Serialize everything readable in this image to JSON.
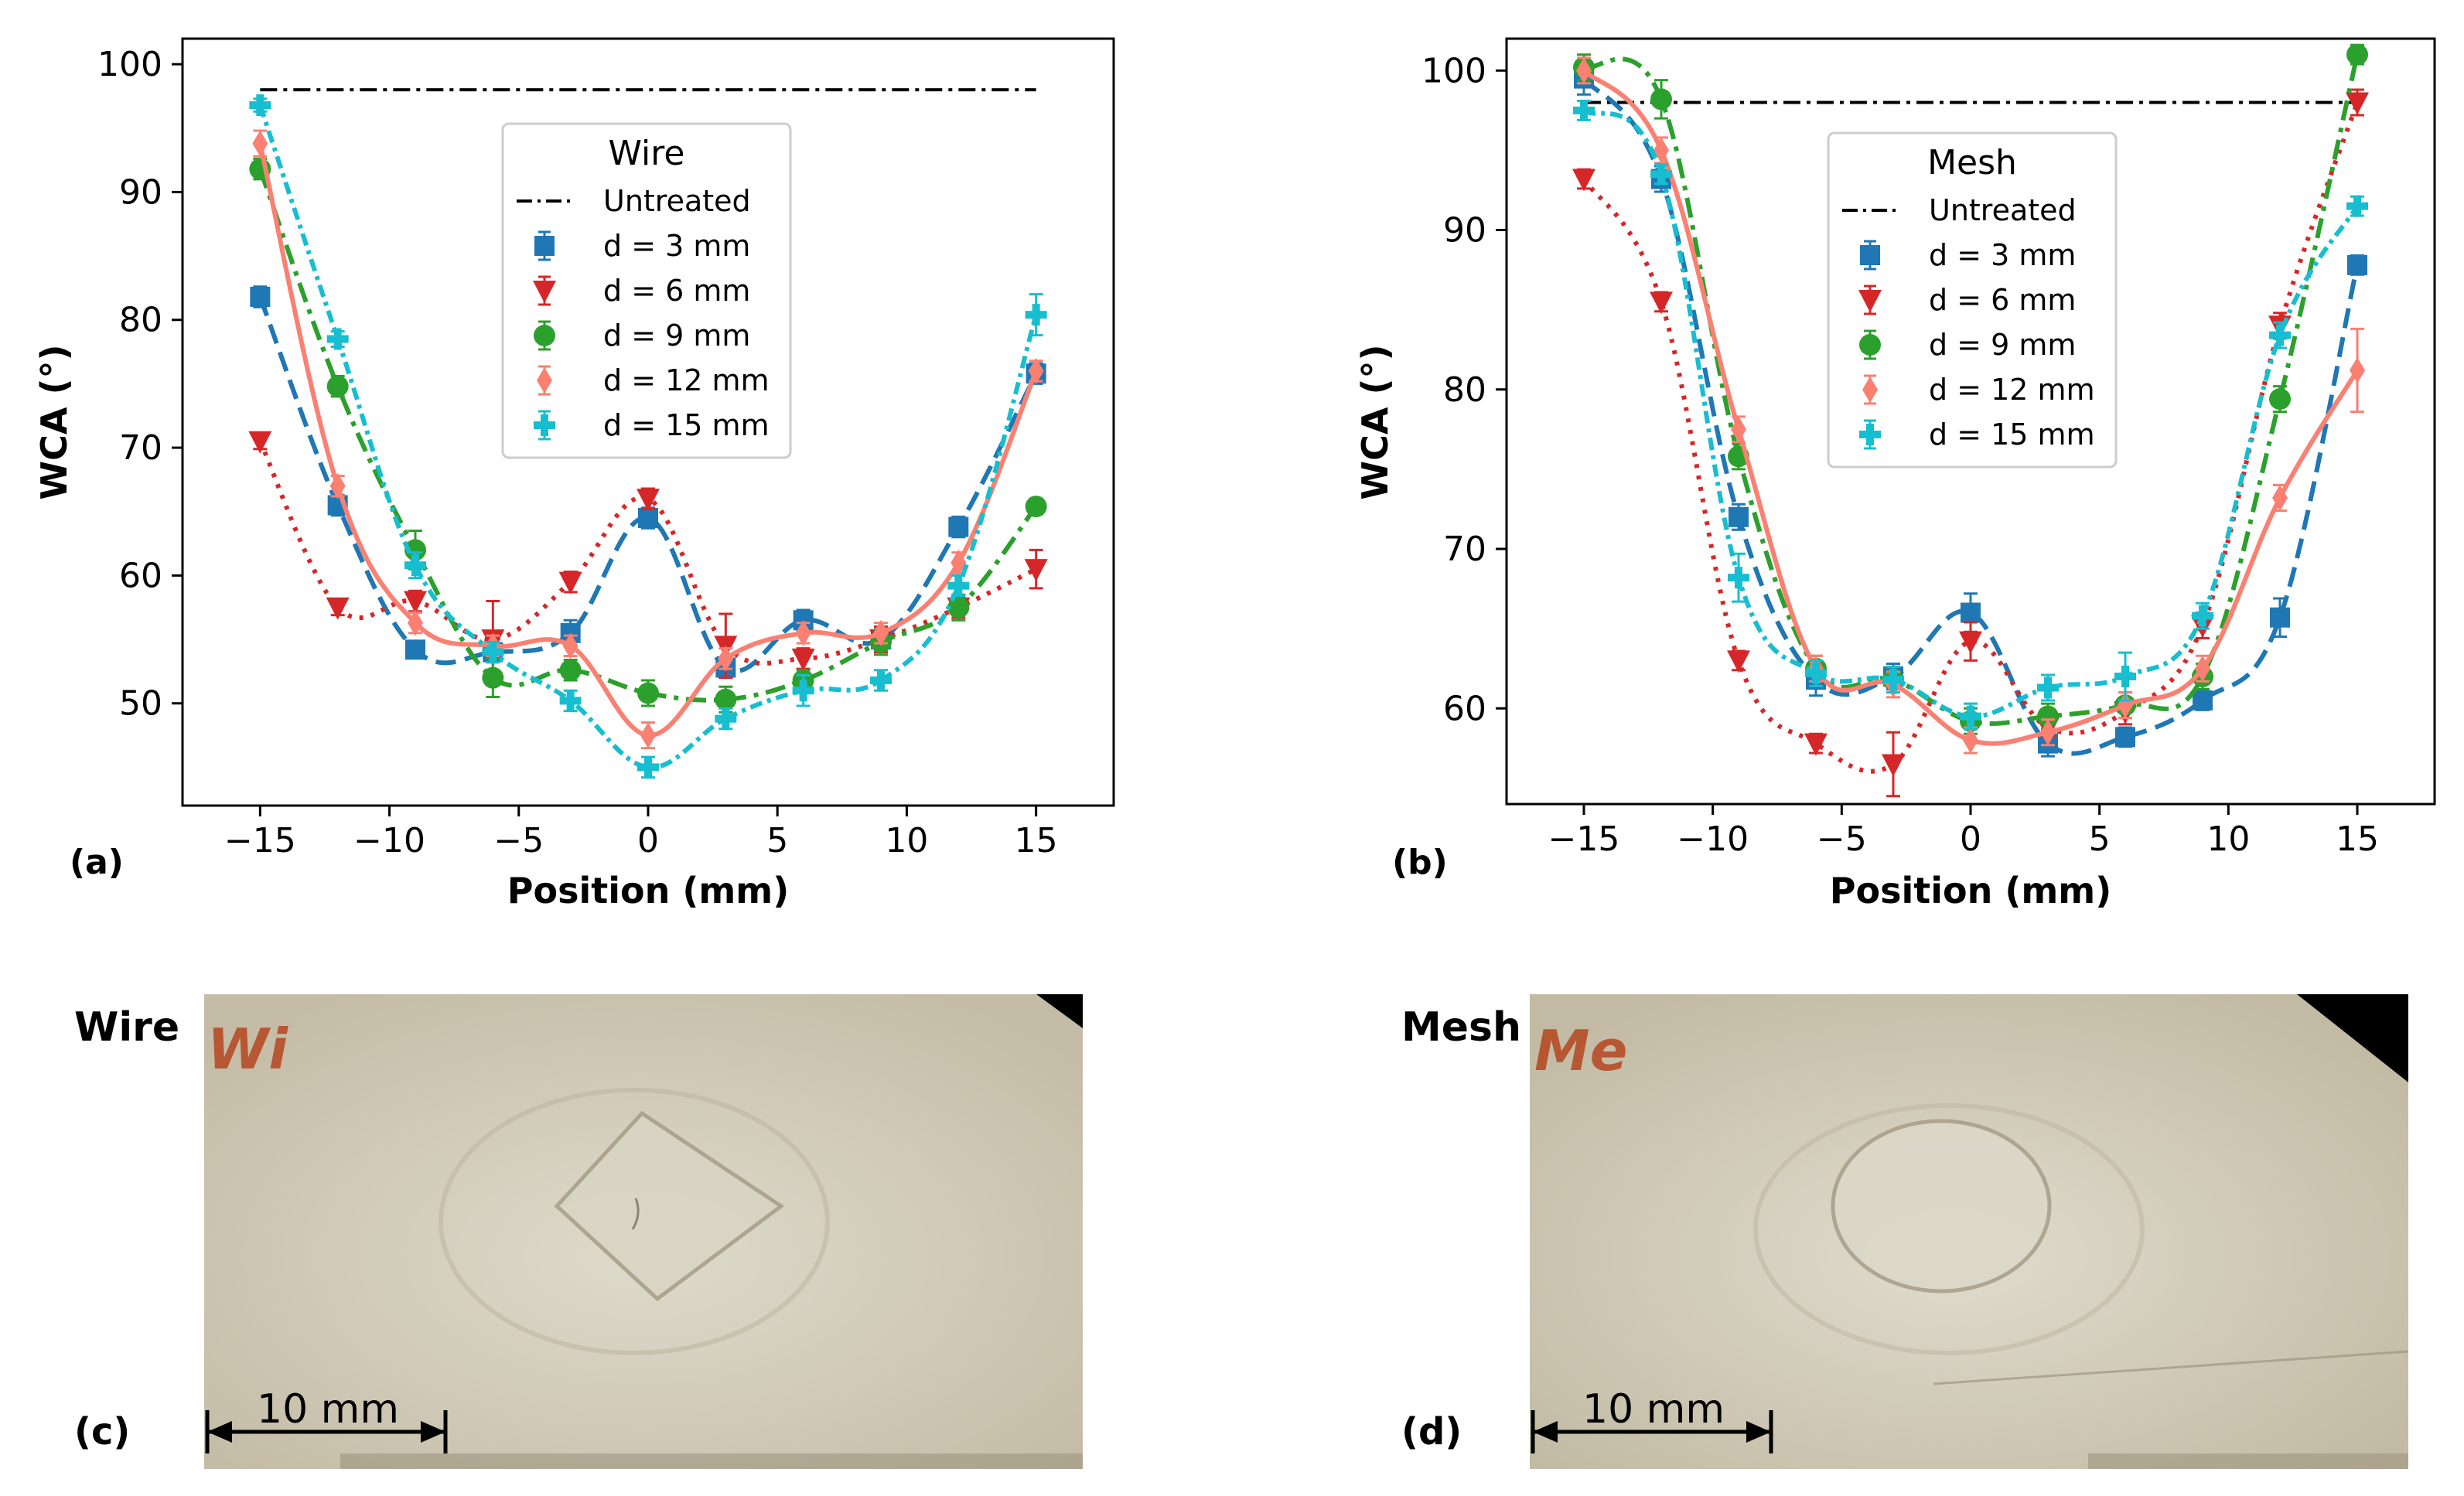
{
  "chart_data": [
    {
      "type": "line",
      "panel": "(a)",
      "legend_title": "Wire",
      "legend_position": "upper-center",
      "xlabel": "Position (mm)",
      "ylabel": "WCA (°)",
      "xlim": [
        -18,
        18
      ],
      "ylim": [
        42,
        102
      ],
      "xticks": [
        -15,
        -10,
        -5,
        0,
        5,
        10,
        15
      ],
      "xtick_labels": [
        "−15",
        "−10",
        "−5",
        "0",
        "5",
        "10",
        "15"
      ],
      "yticks": [
        50,
        60,
        70,
        80,
        90,
        100
      ],
      "ytick_labels": [
        "50",
        "60",
        "70",
        "80",
        "90",
        "100"
      ],
      "grid": false,
      "baseline": {
        "name": "Untreated",
        "value": 98,
        "x_range": [
          -15,
          15
        ]
      },
      "x": [
        -15,
        -12,
        -9,
        -6,
        -3,
        0,
        3,
        6,
        9,
        12,
        15
      ],
      "series": [
        {
          "name": "d = 3 mm",
          "color": "#1f77b4",
          "marker": "square",
          "dash": "dashed",
          "values": [
            81.8,
            65.5,
            54.2,
            54.0,
            55.5,
            64.5,
            52.8,
            56.5,
            55.0,
            63.8,
            75.8
          ],
          "errors": [
            0.8,
            0.8,
            0.6,
            0.6,
            1.0,
            0.8,
            0.8,
            0.8,
            0.8,
            0.8,
            0.8
          ]
        },
        {
          "name": "d = 6 mm",
          "color": "#d62728",
          "marker": "triangle-down",
          "dash": "dotted",
          "values": [
            70.5,
            57.5,
            58.0,
            55.0,
            59.5,
            66.0,
            54.5,
            53.5,
            55.0,
            57.5,
            60.5
          ],
          "errors": [
            0.6,
            0.6,
            0.8,
            3.0,
            0.8,
            0.8,
            2.5,
            0.8,
            1.0,
            0.8,
            1.5
          ]
        },
        {
          "name": "d = 9 mm",
          "color": "#2ca02c",
          "marker": "circle",
          "dash": "dashdot",
          "values": [
            91.8,
            74.8,
            62.0,
            52.0,
            52.6,
            50.8,
            50.3,
            51.8,
            54.8,
            57.5,
            65.4
          ],
          "errors": [
            0.8,
            0.8,
            1.5,
            1.5,
            0.8,
            1.0,
            1.0,
            0.8,
            1.0,
            1.0,
            0.6
          ]
        },
        {
          "name": "d = 12 mm",
          "color": "#fa8072",
          "marker": "diamond",
          "dash": "solid",
          "values": [
            93.8,
            67.0,
            56.3,
            54.5,
            54.5,
            47.5,
            53.5,
            55.5,
            55.5,
            61.0,
            76.0
          ],
          "errors": [
            1.0,
            0.8,
            0.8,
            0.8,
            0.8,
            1.0,
            0.8,
            0.8,
            0.8,
            0.8,
            0.8
          ]
        },
        {
          "name": "d = 15 mm",
          "color": "#17becf",
          "marker": "plus",
          "dash": "densely-dashdot",
          "values": [
            96.8,
            78.5,
            60.8,
            54.0,
            50.2,
            45.0,
            48.8,
            51.0,
            51.8,
            59.2,
            80.4
          ],
          "errors": [
            0.5,
            0.6,
            1.0,
            0.8,
            0.8,
            0.8,
            0.8,
            1.2,
            0.8,
            0.8,
            1.6
          ]
        }
      ]
    },
    {
      "type": "line",
      "panel": "(b)",
      "legend_title": "Mesh",
      "legend_position": "upper-center",
      "xlabel": "Position (mm)",
      "ylabel": "WCA (°)",
      "xlim": [
        -18,
        18
      ],
      "ylim": [
        54,
        102
      ],
      "xticks": [
        -15,
        -10,
        -5,
        0,
        5,
        10,
        15
      ],
      "xtick_labels": [
        "−15",
        "−10",
        "−5",
        "0",
        "5",
        "10",
        "15"
      ],
      "yticks": [
        60,
        70,
        80,
        90,
        100
      ],
      "ytick_labels": [
        "60",
        "70",
        "80",
        "90",
        "100"
      ],
      "grid": false,
      "baseline": {
        "name": "Untreated",
        "value": 98,
        "x_range": [
          -15,
          15
        ]
      },
      "x": [
        -15,
        -12,
        -9,
        -6,
        -3,
        0,
        3,
        6,
        9,
        12,
        15
      ],
      "series": [
        {
          "name": "d = 3 mm",
          "color": "#1f77b4",
          "marker": "square",
          "dash": "dashed",
          "values": [
            99.5,
            93.2,
            72.0,
            61.8,
            62.0,
            66.0,
            57.8,
            58.2,
            60.5,
            65.7,
            87.8
          ],
          "errors": [
            1.0,
            0.8,
            0.8,
            1.0,
            0.8,
            1.2,
            0.8,
            0.6,
            0.6,
            1.2,
            0.6
          ]
        },
        {
          "name": "d = 6 mm",
          "color": "#d62728",
          "marker": "triangle-down",
          "dash": "dotted",
          "values": [
            93.2,
            85.5,
            63.0,
            57.8,
            56.5,
            64.2,
            58.8,
            59.8,
            65.2,
            84.0,
            98.0
          ],
          "errors": [
            0.6,
            0.6,
            0.6,
            0.6,
            2.0,
            1.2,
            0.6,
            0.8,
            0.8,
            0.8,
            0.8
          ]
        },
        {
          "name": "d = 9 mm",
          "color": "#2ca02c",
          "marker": "circle",
          "dash": "dashdot",
          "values": [
            100.2,
            98.2,
            75.8,
            62.5,
            61.8,
            59.2,
            59.5,
            60.2,
            62.0,
            79.4,
            101.0
          ],
          "errors": [
            0.8,
            1.2,
            0.8,
            0.8,
            0.8,
            0.8,
            0.8,
            0.8,
            0.8,
            0.8,
            0.6
          ]
        },
        {
          "name": "d = 12 mm",
          "color": "#fa8072",
          "marker": "diamond",
          "dash": "solid",
          "values": [
            100.0,
            95.0,
            77.5,
            62.5,
            61.5,
            58.0,
            58.5,
            60.2,
            62.5,
            73.2,
            81.2
          ],
          "errors": [
            0.8,
            0.8,
            0.8,
            0.8,
            0.8,
            0.8,
            0.8,
            0.8,
            0.8,
            0.8,
            2.6
          ]
        },
        {
          "name": "d = 15 mm",
          "color": "#17becf",
          "marker": "plus",
          "dash": "densely-dashdot",
          "values": [
            97.5,
            93.5,
            68.2,
            62.2,
            61.8,
            59.5,
            61.3,
            62.0,
            65.8,
            83.4,
            91.5
          ],
          "errors": [
            0.6,
            0.6,
            1.5,
            0.8,
            0.8,
            0.8,
            0.8,
            1.5,
            0.8,
            0.8,
            0.6
          ]
        }
      ]
    }
  ],
  "photos": [
    {
      "panel": "(c)",
      "label": "Wire",
      "scale_bar": "10 mm",
      "marking": "Wi"
    },
    {
      "panel": "(d)",
      "label": "Mesh",
      "scale_bar": "10 mm",
      "marking": "Me"
    }
  ],
  "colors": {
    "photo_bg": "#cdc7b3",
    "photo_center": "#ddd9c8",
    "marking": "#b5461f"
  }
}
